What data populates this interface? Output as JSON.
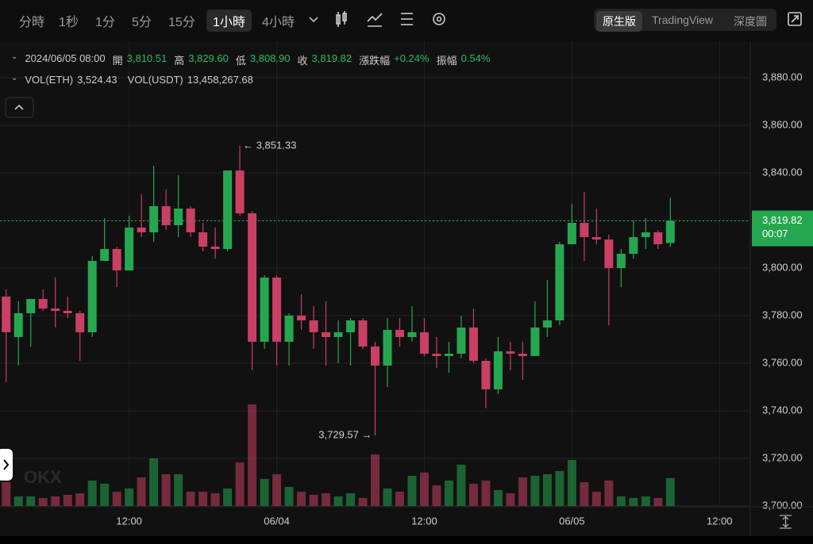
{
  "toolbar": {
    "intervals": [
      "分時",
      "1秒",
      "1分",
      "5分",
      "15分",
      "1小時",
      "4小時"
    ],
    "selected": 5,
    "views": [
      "原生版",
      "TradingView",
      "深度圖"
    ],
    "selected_view": 0
  },
  "chart_data": {
    "type": "candlestick",
    "info": {
      "time": "2024/06/05 08:00",
      "items": [
        {
          "label": "開",
          "value": "3,810.51"
        },
        {
          "label": "高",
          "value": "3,829.60"
        },
        {
          "label": "低",
          "value": "3,808.90"
        },
        {
          "label": "收",
          "value": "3,819.82"
        },
        {
          "label": "漲跌幅",
          "value": "+0.24%"
        },
        {
          "label": "振幅",
          "value": "0.54%"
        }
      ],
      "volume_items": [
        {
          "label": "VOL(ETH)",
          "value": "3,524.43"
        },
        {
          "label": "VOL(USDT)",
          "value": "13,458,267.68"
        }
      ]
    },
    "open": [
      3788,
      3771,
      3781,
      3787,
      3783,
      3782,
      3781,
      3773,
      3803,
      3808,
      3799,
      3817,
      3815,
      3826,
      3818,
      3825,
      3815,
      3809,
      3808,
      3841,
      3823,
      3769,
      3796,
      3769,
      3780,
      3778,
      3773,
      3771,
      3773,
      3778,
      3767,
      3759,
      3774,
      3771,
      3773,
      3764,
      3763,
      3764,
      3775,
      3761,
      3749,
      3765,
      3764,
      3763,
      3775,
      3778,
      3810,
      3819,
      3813,
      3812,
      3800,
      3806,
      3813,
      3815,
      3810.51
    ],
    "high": [
      3791,
      3786,
      3787,
      3791,
      3796,
      3788,
      3782,
      3805,
      3821,
      3809,
      3822,
      3831,
      3843,
      3833,
      3839,
      3826,
      3819,
      3817,
      3841,
      3851.33,
      3824,
      3797,
      3797,
      3781,
      3789,
      3784,
      3786,
      3778,
      3779,
      3779,
      3769,
      3779,
      3779,
      3784,
      3779,
      3771,
      3769,
      3780,
      3783,
      3762,
      3771,
      3769,
      3769,
      3786,
      3795,
      3811,
      3827,
      3832,
      3825,
      3814,
      3808,
      3820,
      3821,
      3816,
      3829.6
    ],
    "low": [
      3752,
      3759,
      3767,
      3782,
      3775,
      3779,
      3761,
      3771,
      3803,
      3792,
      3799,
      3813,
      3811,
      3816,
      3813,
      3813,
      3807,
      3804,
      3807,
      3822,
      3757,
      3766,
      3759,
      3759,
      3774,
      3766,
      3759,
      3760,
      3759,
      3766,
      3729.57,
      3750,
      3767,
      3769,
      3763,
      3758,
      3756,
      3762,
      3760,
      3741,
      3747,
      3757,
      3753,
      3763,
      3771,
      3776,
      3810,
      3803,
      3810,
      3776,
      3792,
      3804,
      3808,
      3808,
      3808.9
    ],
    "close": [
      3773,
      3781,
      3787,
      3783,
      3782,
      3781,
      3773,
      3803,
      3808,
      3799,
      3817,
      3815,
      3826,
      3818,
      3825,
      3815,
      3809,
      3808,
      3841,
      3823,
      3769,
      3796,
      3769,
      3780,
      3778,
      3773,
      3771,
      3773,
      3778,
      3767,
      3759,
      3774,
      3771,
      3773,
      3764,
      3763,
      3764,
      3775,
      3761,
      3749,
      3765,
      3764,
      3763,
      3775,
      3778,
      3810,
      3819,
      3813,
      3812,
      3800,
      3806,
      3813,
      3815,
      3810,
      3819.82
    ],
    "volume": [
      3000,
      1200,
      1200,
      1000,
      1200,
      1400,
      1600,
      3200,
      2800,
      1800,
      2200,
      3600,
      6000,
      4000,
      4000,
      1800,
      1800,
      1600,
      2200,
      5500,
      12800,
      3400,
      4000,
      2400,
      1800,
      1400,
      1600,
      1200,
      1600,
      1000,
      6500,
      2200,
      1800,
      3800,
      4200,
      2600,
      3200,
      5200,
      2800,
      3200,
      2000,
      1600,
      3600,
      3800,
      4000,
      4400,
      5800,
      3000,
      1800,
      3200,
      1200,
      1000,
      1200,
      1000,
      3524.43
    ],
    "up_color": "#25a750",
    "down_color": "#ca3f64",
    "ylim": [
      3700,
      3894
    ],
    "yticks": [
      {
        "value": 3700,
        "label": "3,700.00"
      },
      {
        "value": 3720,
        "label": "3,720.00"
      },
      {
        "value": 3740,
        "label": "3,740.00"
      },
      {
        "value": 3760,
        "label": "3,760.00"
      },
      {
        "value": 3780,
        "label": "3,780.00"
      },
      {
        "value": 3800,
        "label": "3,800.00"
      },
      {
        "value": 3820,
        "label": "3,820.00"
      },
      {
        "value": 3840,
        "label": "3,840.00"
      },
      {
        "value": 3860,
        "label": "3,860.00"
      },
      {
        "value": 3880,
        "label": "3,880.00"
      }
    ],
    "xlim": [
      -0.5,
      60.5
    ],
    "xticks": [
      {
        "value": 10,
        "label": "12:00"
      },
      {
        "value": 22,
        "label": "06/04"
      },
      {
        "value": 34,
        "label": "12:00"
      },
      {
        "value": 46,
        "label": "06/05"
      },
      {
        "value": 58,
        "label": "12:00"
      }
    ],
    "grid": true,
    "annotations": [
      "← 3,851.33",
      "3,729.57 →"
    ],
    "last_price_label": "3,819.82",
    "countdown": "00:07",
    "watermark": "OKX"
  }
}
